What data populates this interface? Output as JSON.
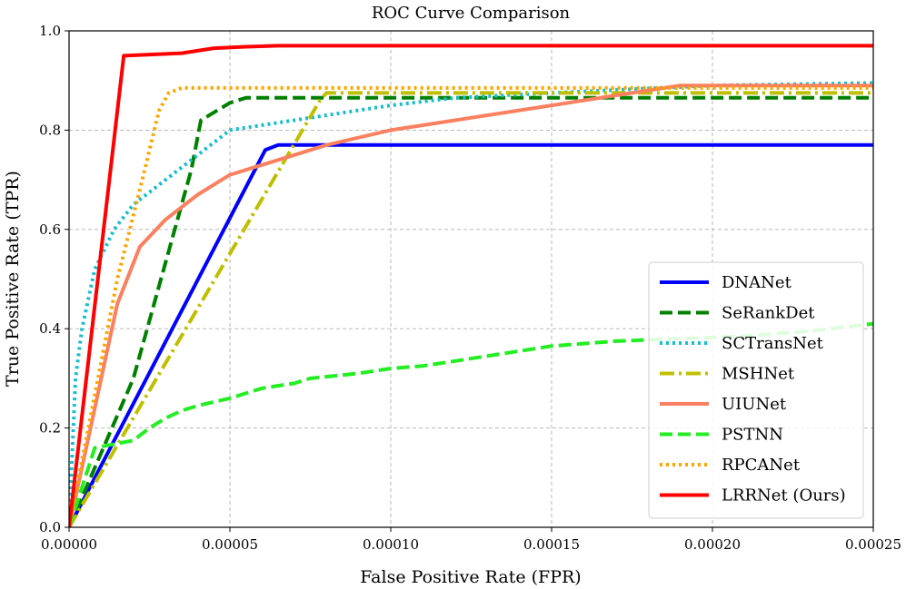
{
  "chart_data": {
    "type": "line",
    "title": "ROC Curve Comparison",
    "xlabel": "False Positive Rate (FPR)",
    "ylabel": "True Positive Rate (TPR)",
    "xlim": [
      0,
      0.00025
    ],
    "ylim": [
      0,
      1.0
    ],
    "xticks": [
      0,
      5e-05,
      0.0001,
      0.00015,
      0.0002,
      0.00025
    ],
    "xtick_labels": [
      "0.00000",
      "0.00005",
      "0.00010",
      "0.00015",
      "0.00020",
      "0.00025"
    ],
    "yticks": [
      0,
      0.2,
      0.4,
      0.6,
      0.8,
      1.0
    ],
    "ytick_labels": [
      "0.0",
      "0.2",
      "0.4",
      "0.6",
      "0.8",
      "1.0"
    ],
    "grid": true,
    "legend_position": "lower-right",
    "series": [
      {
        "name": "DNANet",
        "color": "#0000ff",
        "style": "solid",
        "x": [
          0,
          6.1e-05,
          6.5e-05,
          0.00025
        ],
        "y": [
          0,
          0.76,
          0.77,
          0.77
        ]
      },
      {
        "name": "SeRankDet",
        "color": "#008000",
        "style": "dashed",
        "x": [
          0,
          2e-05,
          3.8e-05,
          4.1e-05,
          5e-05,
          5.5e-05,
          0.00025
        ],
        "y": [
          0,
          0.3,
          0.72,
          0.82,
          0.855,
          0.865,
          0.865
        ]
      },
      {
        "name": "SCTransNet",
        "color": "#17becf",
        "style": "dotted",
        "x": [
          0,
          2e-06,
          4e-06,
          8e-06,
          1.4e-05,
          2e-05,
          3e-05,
          4e-05,
          5e-05,
          6e-05,
          7e-05,
          8e-05,
          0.0001,
          0.00012,
          0.00015,
          0.0002,
          0.00025
        ],
        "y": [
          0,
          0.3,
          0.4,
          0.52,
          0.6,
          0.65,
          0.7,
          0.75,
          0.8,
          0.81,
          0.82,
          0.83,
          0.85,
          0.865,
          0.875,
          0.89,
          0.895
        ]
      },
      {
        "name": "MSHNet",
        "color": "#bfbf00",
        "style": "dashdot",
        "x": [
          0,
          7.8e-05,
          8e-05,
          0.00025
        ],
        "y": [
          0,
          0.86,
          0.875,
          0.875
        ]
      },
      {
        "name": "UIUNet",
        "color": "#fa8060",
        "style": "solid",
        "x": [
          0,
          1.5e-05,
          2.2e-05,
          3e-05,
          4e-05,
          5e-05,
          6e-05,
          7e-05,
          8e-05,
          0.0001,
          0.00012,
          0.00015,
          0.00018,
          0.00019,
          0.00025
        ],
        "y": [
          0,
          0.45,
          0.565,
          0.62,
          0.67,
          0.71,
          0.73,
          0.75,
          0.77,
          0.8,
          0.82,
          0.85,
          0.88,
          0.89,
          0.89
        ]
      },
      {
        "name": "PSTNN",
        "color": "#22ee22",
        "style": "dashed",
        "x": [
          0,
          8e-06,
          1.6e-05,
          2e-05,
          2.5e-05,
          3e-05,
          3.5e-05,
          4e-05,
          5e-05,
          6e-05,
          7e-05,
          7.5e-05,
          9e-05,
          0.0001,
          0.00011,
          0.00012,
          0.00013,
          0.00015,
          0.00017,
          0.00019,
          0.00021,
          0.00023,
          0.00025
        ],
        "y": [
          0,
          0.16,
          0.17,
          0.175,
          0.2,
          0.22,
          0.235,
          0.245,
          0.26,
          0.28,
          0.29,
          0.3,
          0.31,
          0.32,
          0.325,
          0.335,
          0.345,
          0.365,
          0.375,
          0.38,
          0.385,
          0.395,
          0.41
        ]
      },
      {
        "name": "RPCANet",
        "color": "#ffa500",
        "style": "dotted",
        "x": [
          0,
          1.5e-05,
          2.2e-05,
          2.8e-05,
          3.1e-05,
          3.5e-05,
          0.00025
        ],
        "y": [
          0,
          0.5,
          0.68,
          0.84,
          0.875,
          0.885,
          0.885
        ]
      },
      {
        "name": "LRRNet (Ours)",
        "color": "#ff0000",
        "style": "solid",
        "x": [
          0,
          1.7e-05,
          3.5e-05,
          4.5e-05,
          5.5e-05,
          6.5e-05,
          0.00025
        ],
        "y": [
          0,
          0.95,
          0.955,
          0.965,
          0.968,
          0.97,
          0.97
        ]
      }
    ]
  }
}
